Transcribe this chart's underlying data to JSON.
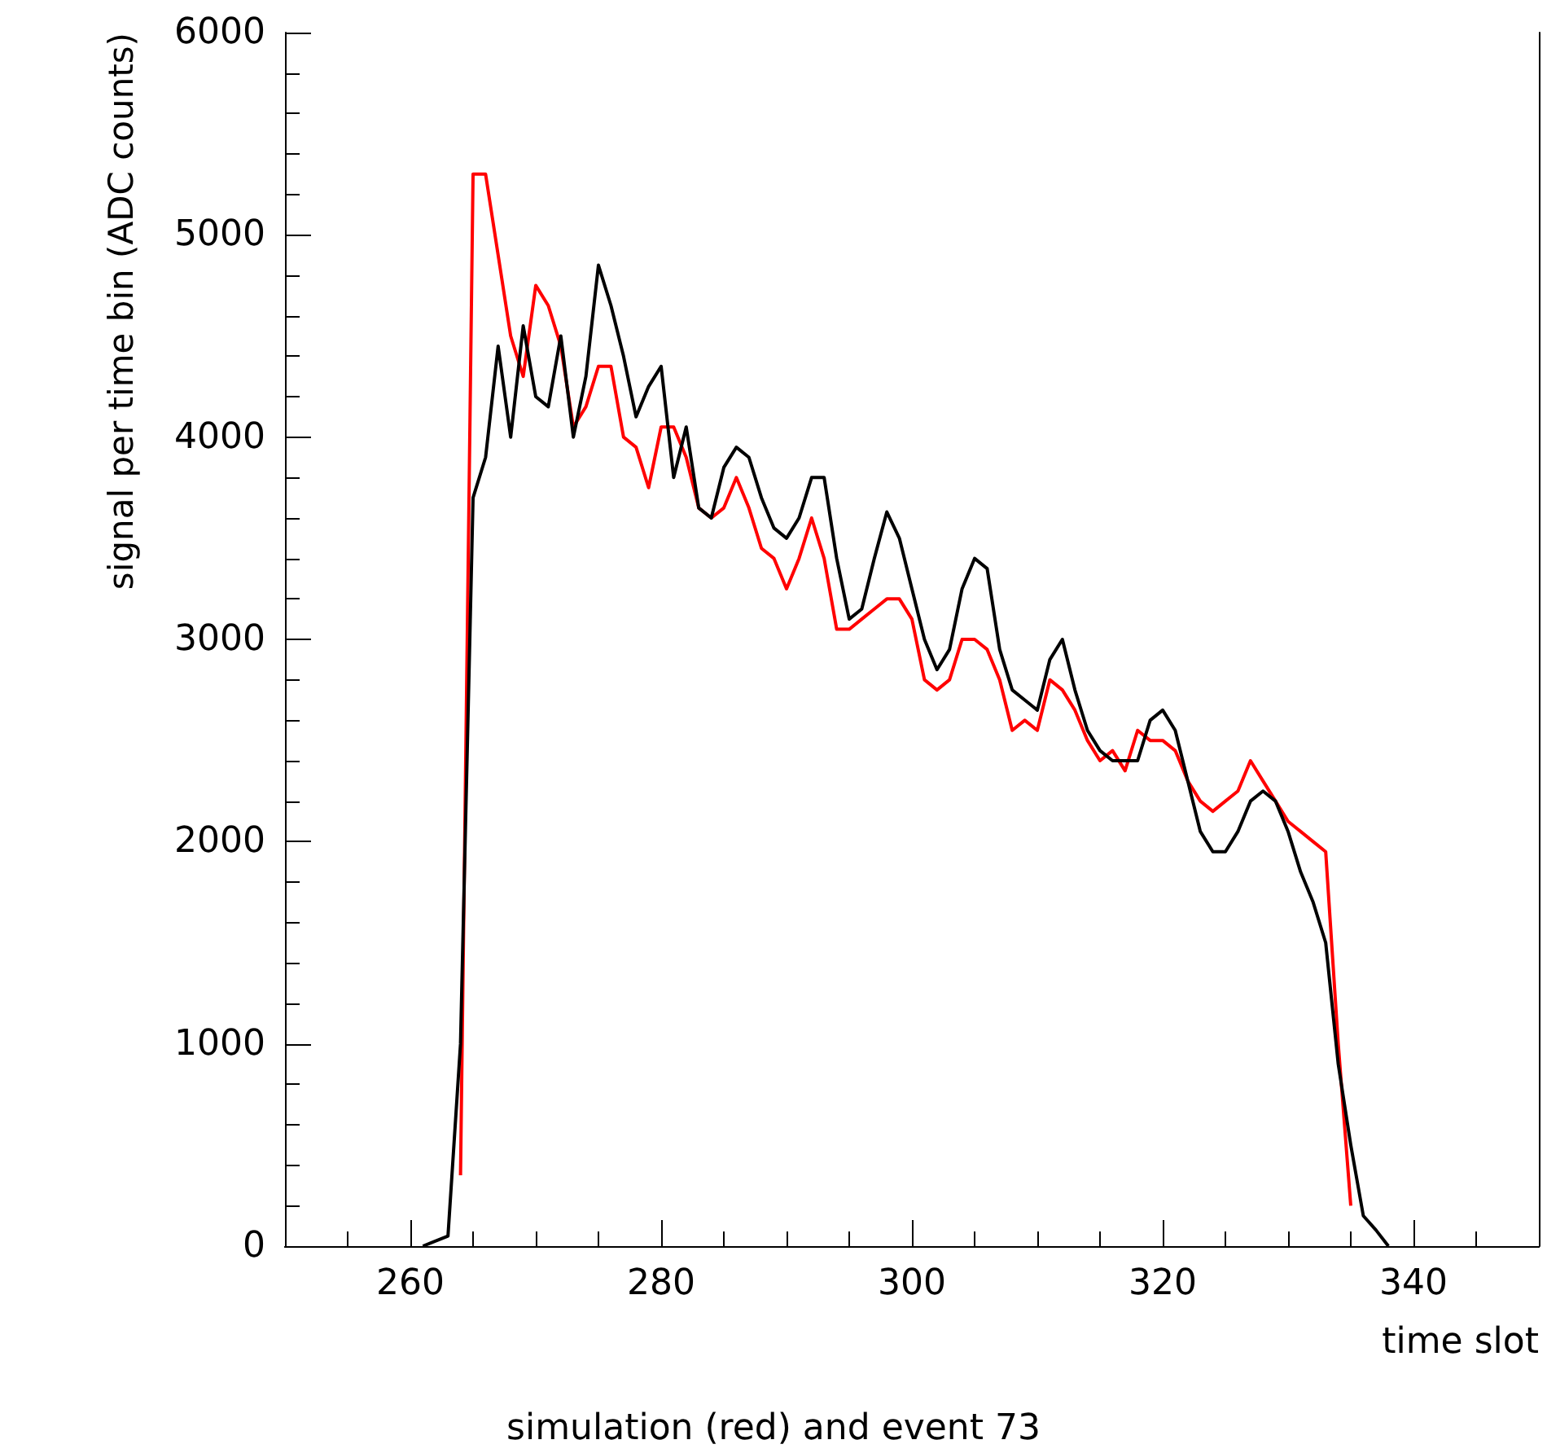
{
  "chart_data": {
    "type": "line",
    "xlabel": "time slot",
    "ylabel": "signal per time bin (ADC counts)",
    "annotations": [
      "simulation (red) and event 73"
    ],
    "xlim": [
      250,
      350
    ],
    "xticks": [
      260,
      280,
      300,
      320,
      340
    ],
    "ylim": [
      0,
      6000
    ],
    "yticks": [
      0,
      1000,
      2000,
      3000,
      4000,
      5000,
      6000
    ],
    "grid": false,
    "marker": "none",
    "line_style": "solid",
    "series": [
      {
        "color": "#ff0000",
        "x": [
          264,
          265,
          266,
          267,
          268,
          269,
          270,
          271,
          272,
          273,
          274,
          275,
          276,
          277,
          278,
          279,
          280,
          281,
          282,
          283,
          284,
          285,
          286,
          287,
          288,
          289,
          290,
          291,
          292,
          293,
          294,
          295,
          296,
          297,
          298,
          299,
          300,
          301,
          302,
          303,
          304,
          305,
          306,
          307,
          308,
          309,
          310,
          311,
          312,
          313,
          314,
          315,
          316,
          317,
          318,
          319,
          320,
          321,
          322,
          323,
          324,
          325,
          326,
          327,
          328,
          329,
          330,
          331,
          332,
          333,
          334,
          335
        ],
        "values": [
          350,
          5300,
          5300,
          4900,
          4500,
          4300,
          4750,
          4650,
          4450,
          4050,
          4150,
          4350,
          4350,
          4000,
          3950,
          3750,
          4050,
          4050,
          3900,
          3650,
          3600,
          3650,
          3800,
          3650,
          3450,
          3400,
          3250,
          3400,
          3600,
          3400,
          3050,
          3050,
          3100,
          3150,
          3200,
          3200,
          3100,
          2800,
          2750,
          2800,
          3000,
          3000,
          2950,
          2800,
          2550,
          2600,
          2550,
          2800,
          2750,
          2650,
          2500,
          2400,
          2450,
          2350,
          2550,
          2500,
          2500,
          2450,
          2300,
          2200,
          2150,
          2200,
          2250,
          2400,
          2300,
          2200,
          2100,
          2050,
          2000,
          1950,
          1000,
          200
        ]
      },
      {
        "color": "#000000",
        "x": [
          261,
          263,
          264,
          265,
          266,
          267,
          268,
          269,
          270,
          271,
          272,
          273,
          274,
          275,
          276,
          277,
          278,
          279,
          280,
          281,
          282,
          283,
          284,
          285,
          286,
          287,
          288,
          289,
          290,
          291,
          292,
          293,
          294,
          295,
          296,
          297,
          298,
          299,
          300,
          301,
          302,
          303,
          304,
          305,
          306,
          307,
          308,
          309,
          310,
          311,
          312,
          313,
          314,
          315,
          316,
          317,
          318,
          319,
          320,
          321,
          322,
          323,
          324,
          325,
          326,
          327,
          328,
          329,
          330,
          331,
          332,
          333,
          334,
          335,
          336,
          337,
          338
        ],
        "values": [
          0,
          50,
          1000,
          3700,
          3900,
          4450,
          4000,
          4550,
          4200,
          4150,
          4500,
          4000,
          4300,
          4850,
          4650,
          4400,
          4100,
          4250,
          4350,
          3800,
          4050,
          3650,
          3600,
          3850,
          3950,
          3900,
          3700,
          3550,
          3500,
          3600,
          3800,
          3800,
          3400,
          3100,
          3150,
          3400,
          3630,
          3500,
          3250,
          3000,
          2850,
          2950,
          3250,
          3400,
          3350,
          2950,
          2750,
          2700,
          2650,
          2900,
          3000,
          2750,
          2550,
          2450,
          2400,
          2400,
          2400,
          2600,
          2650,
          2550,
          2300,
          2050,
          1950,
          1950,
          2050,
          2200,
          2250,
          2200,
          2050,
          1850,
          1700,
          1500,
          900,
          500,
          150,
          80,
          0
        ]
      }
    ]
  }
}
